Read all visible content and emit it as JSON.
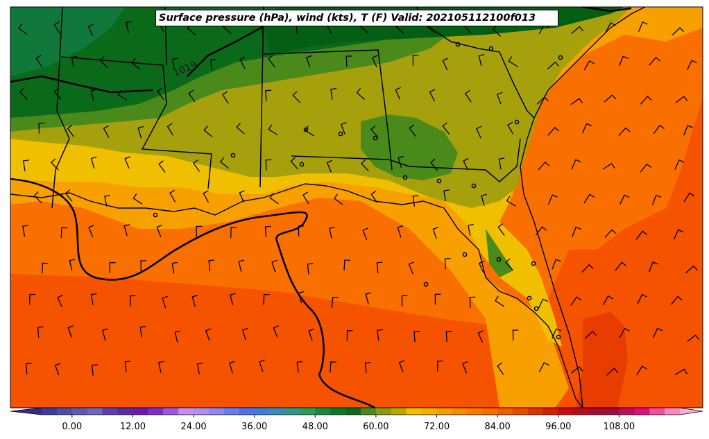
{
  "title": "Surface pressure (hPa), wind (kts), T (F) Valid: 202105112100f013",
  "isobar_label": "1019",
  "colorbar": {
    "min": -6,
    "max": 120,
    "step": 3,
    "tick_labels": [
      "0.00",
      "12.00",
      "24.00",
      "36.00",
      "48.00",
      "60.00",
      "72.00",
      "84.00",
      "96.00",
      "108.00"
    ],
    "tick_values": [
      0,
      12,
      24,
      36,
      48,
      60,
      72,
      84,
      96,
      108
    ],
    "colors": [
      "#3a3aa0",
      "#4b4ba8",
      "#5a5aae",
      "#6a6ab6",
      "#5b3fae",
      "#5a2aa6",
      "#6a18b4",
      "#7a30cc",
      "#9a5ae0",
      "#c490ec",
      "#b28ef0",
      "#8a8af4",
      "#6a7cf4",
      "#4a72ee",
      "#3a7ee0",
      "#3a8ab8",
      "#2a9a8a",
      "#2a9a5a",
      "#1a8a3a",
      "#0a7a2a",
      "#0a6a1a",
      "#4a8a1a",
      "#8a9a12",
      "#b8a800",
      "#f0c000",
      "#f4b000",
      "#f89c00",
      "#fa8a00",
      "#fc7a00",
      "#fe6a00",
      "#f85a00",
      "#ec4800",
      "#e03000",
      "#d81a00",
      "#cc0c0c",
      "#b80c1c",
      "#a80c2c",
      "#a00c40",
      "#c00c5c",
      "#e00c7c",
      "#f44ca0",
      "#f888c0"
    ],
    "under_color": "#2e2e90",
    "over_color": "#fcacd4"
  },
  "colors": {
    "cool_green": "#0a6a1a",
    "mid_green": "#4a8a1a",
    "olive": "#a6a00c",
    "yellow": "#f0c000",
    "light_orange": "#f8a000",
    "orange": "#fa7000",
    "red_orange": "#f65300",
    "hot": "#e83c00"
  }
}
